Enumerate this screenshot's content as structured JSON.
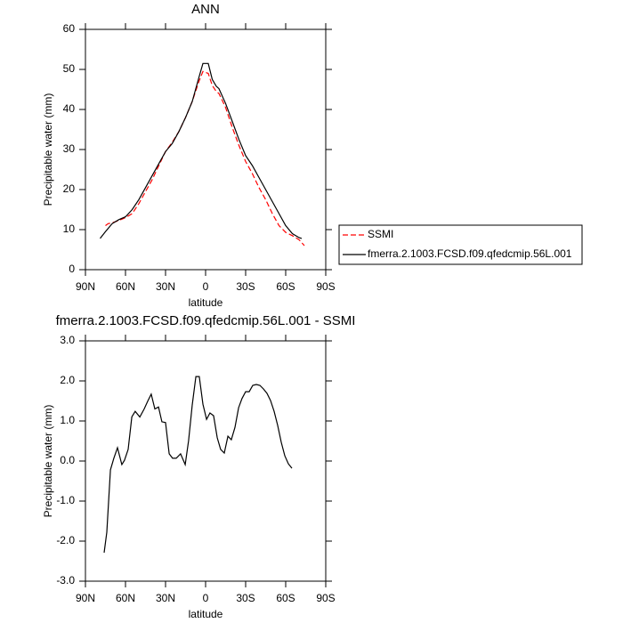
{
  "chart_data": [
    {
      "type": "line",
      "title": "ANN",
      "xlabel": "latitude",
      "ylabel": "Precipitable water (mm)",
      "xlim": [
        90,
        -90
      ],
      "ylim": [
        0,
        60
      ],
      "xticks": [
        {
          "value": 90,
          "label": "90N"
        },
        {
          "value": 60,
          "label": "60N"
        },
        {
          "value": 30,
          "label": "30N"
        },
        0,
        {
          "value": -30,
          "label": "30S"
        },
        {
          "value": -60,
          "label": "60S"
        },
        {
          "value": -90,
          "label": "90S"
        }
      ],
      "yticks": [
        0,
        10,
        20,
        30,
        40,
        50,
        60
      ],
      "legend": "right",
      "series": [
        {
          "name": "SSMI",
          "color": "#ff0000",
          "linestyle": "dashed",
          "x": [
            75,
            73,
            70,
            65,
            60,
            55,
            50,
            45,
            40,
            35,
            30,
            25,
            20,
            15,
            10,
            5,
            2,
            -2,
            -5,
            -8,
            -10,
            -15,
            -20,
            -25,
            -30,
            -35,
            -40,
            -45,
            -50,
            -55,
            -60,
            -65,
            -70,
            -74
          ],
          "values": [
            11,
            11.5,
            11.7,
            12.3,
            13,
            14,
            16.5,
            19.5,
            22.5,
            26,
            29.5,
            31.8,
            34.5,
            38,
            42,
            47,
            49.5,
            49,
            46,
            44.5,
            44,
            40.5,
            35.5,
            31,
            27,
            24,
            20.5,
            17.5,
            14,
            11,
            9.3,
            8.5,
            7.5,
            6
          ]
        },
        {
          "name": "fmerra.2.1003.FCSD.f09.qfedcmip.56L.001",
          "color": "#000000",
          "linestyle": "solid",
          "x": [
            79,
            75,
            70,
            65,
            60,
            55,
            50,
            45,
            40,
            35,
            30,
            25,
            20,
            15,
            10,
            5,
            2,
            -2,
            -5,
            -8,
            -10,
            -15,
            -20,
            -25,
            -30,
            -35,
            -40,
            -45,
            -50,
            -55,
            -60,
            -65,
            -70,
            -72
          ],
          "values": [
            7.8,
            9.5,
            11.5,
            12.5,
            13.2,
            15,
            17.5,
            20.5,
            23.5,
            26.5,
            29.5,
            31.5,
            34.5,
            38,
            42,
            48,
            51.5,
            51.5,
            47.5,
            45.8,
            45.2,
            41.5,
            37,
            32.5,
            28.5,
            26,
            23,
            20,
            17,
            14,
            11,
            9,
            8,
            7.8
          ]
        }
      ]
    },
    {
      "type": "line",
      "title": "fmerra.2.1003.FCSD.f09.qfedcmip.56L.001 - SSMI",
      "xlabel": "latitude",
      "ylabel": "Precipitable water (mm)",
      "xlim": [
        90,
        -90
      ],
      "ylim": [
        -3,
        3
      ],
      "xticks": [
        {
          "value": 90,
          "label": "90N"
        },
        {
          "value": 60,
          "label": "60N"
        },
        {
          "value": 30,
          "label": "30N"
        },
        0,
        {
          "value": -30,
          "label": "30S"
        },
        {
          "value": -60,
          "label": "60S"
        },
        {
          "value": -90,
          "label": "90S"
        }
      ],
      "yticks": [
        {
          "value": -3,
          "label": "-3.0"
        },
        {
          "value": -2,
          "label": "-2.0"
        },
        {
          "value": -1,
          "label": "-1.0"
        },
        {
          "value": 0,
          "label": "0.0"
        },
        {
          "value": 1,
          "label": "1.0"
        },
        {
          "value": 2,
          "label": "2.0"
        },
        {
          "value": 3,
          "label": "3.0"
        }
      ],
      "series": [
        {
          "color": "#000000",
          "linestyle": "solid",
          "x": [
            76,
            74,
            71.3,
            68.7,
            66,
            62.7,
            60.7,
            58,
            55.3,
            52.7,
            49.3,
            46,
            43.3,
            40.7,
            38,
            35.3,
            32.7,
            30,
            27.3,
            24.7,
            22,
            18.7,
            15.3,
            12.7,
            10,
            7.3,
            4.7,
            2,
            -0.7,
            -3.3,
            -6,
            -8.7,
            -11.3,
            -14,
            -16.7,
            -19.3,
            -22,
            -24.7,
            -27.3,
            -30,
            -32.7,
            -35.3,
            -38,
            -40.7,
            -43.3,
            -46,
            -48.7,
            -51.3,
            -54,
            -56.7,
            -59.3,
            -62,
            -64.7
          ],
          "values": [
            -2.29,
            -1.78,
            -0.22,
            0.07,
            0.33,
            -0.09,
            0.02,
            0.29,
            1.1,
            1.24,
            1.1,
            1.3,
            1.5,
            1.67,
            1.3,
            1.35,
            0.98,
            0.96,
            0.18,
            0.07,
            0.07,
            0.18,
            -0.09,
            0.51,
            1.4,
            2.11,
            2.11,
            1.42,
            1.04,
            1.2,
            1.13,
            0.58,
            0.29,
            0.2,
            0.62,
            0.53,
            0.84,
            1.33,
            1.56,
            1.73,
            1.73,
            1.89,
            1.91,
            1.89,
            1.8,
            1.69,
            1.51,
            1.24,
            0.89,
            0.47,
            0.13,
            -0.07,
            -0.18
          ]
        }
      ]
    }
  ]
}
